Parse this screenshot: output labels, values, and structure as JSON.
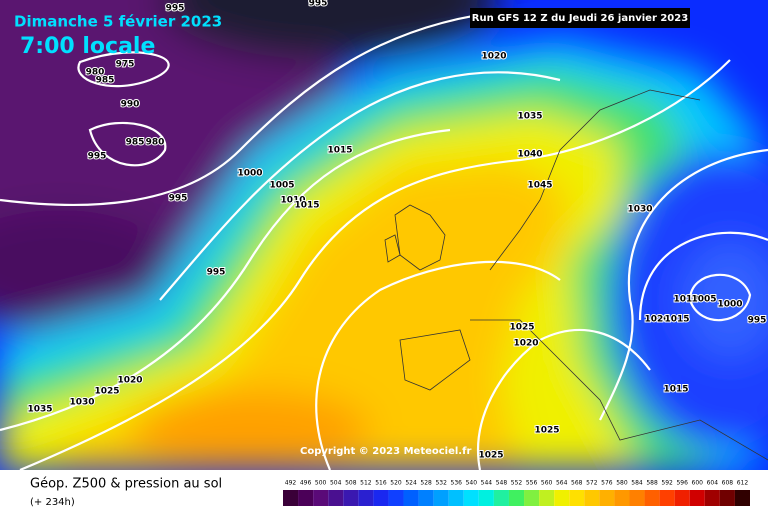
{
  "header": {
    "date": "Dimanche 5 février 2023",
    "time": "7:00 locale",
    "run": "Run GFS 12 Z du Jeudi 26 janvier 2023"
  },
  "copyright": "Copyright © 2023 Meteociel.fr",
  "footer": {
    "title": "Géop. Z500 & pression au sol",
    "lead": "(+ 234h)"
  },
  "isobar_labels": [
    "995",
    "995",
    "975",
    "980",
    "985",
    "990",
    "985",
    "980",
    "995",
    "1000",
    "1005",
    "1015",
    "1010",
    "1015",
    "995",
    "995",
    "1020",
    "1035",
    "1040",
    "1045",
    "1030",
    "1010",
    "1005",
    "1000",
    "995",
    "1020",
    "1015",
    "1025",
    "1020",
    "1015",
    "1020",
    "1025",
    "1030",
    "1035",
    "1025",
    "1025"
  ],
  "colorbar": {
    "levels": [
      492,
      496,
      500,
      504,
      508,
      512,
      516,
      520,
      524,
      528,
      532,
      536,
      540,
      544,
      548,
      552,
      556,
      560,
      564,
      568,
      572,
      576,
      580,
      584,
      588,
      592,
      596,
      600,
      604,
      608,
      612
    ],
    "colors": [
      "#3a0038",
      "#4b0058",
      "#5a0a78",
      "#4a1090",
      "#3a18b0",
      "#2a20d0",
      "#1a28f0",
      "#1040ff",
      "#0060ff",
      "#0080ff",
      "#00a0ff",
      "#00c0ff",
      "#00e0ff",
      "#00f0e0",
      "#20f0a0",
      "#40f060",
      "#80f040",
      "#c0f020",
      "#f0f000",
      "#ffe000",
      "#ffc800",
      "#ffb000",
      "#ff9800",
      "#ff8000",
      "#ff6000",
      "#ff4000",
      "#f02000",
      "#d00000",
      "#a00000",
      "#700000",
      "#300000"
    ]
  }
}
